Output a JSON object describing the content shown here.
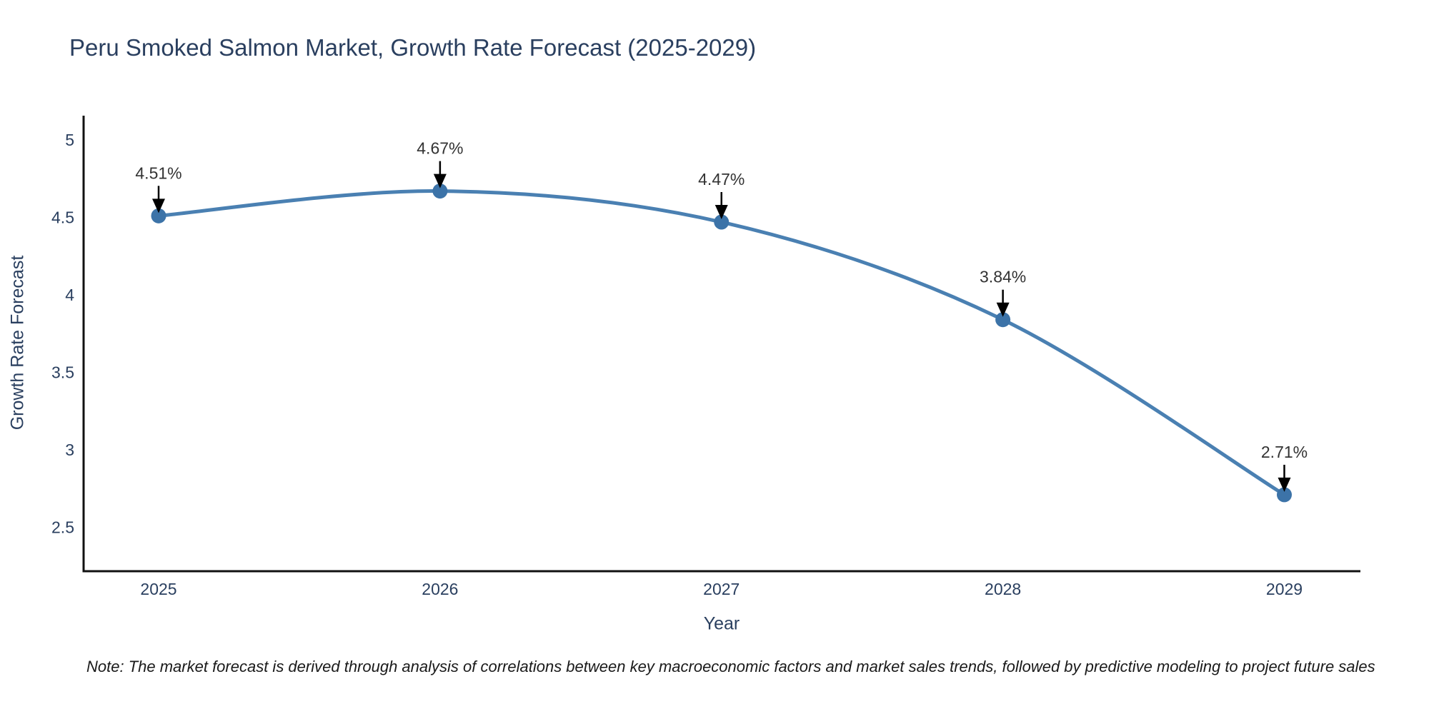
{
  "page": {
    "note": "Note: The market forecast is derived through analysis of correlations between key macroeconomic factors and market sales trends, followed by predictive modeling to project future sales"
  },
  "chart_data": {
    "type": "line",
    "title": "Peru Smoked Salmon Market, Growth Rate Forecast (2025-2029)",
    "xlabel": "Year",
    "ylabel": "Growth Rate Forecast",
    "x": [
      "2025",
      "2026",
      "2027",
      "2028",
      "2029"
    ],
    "series": [
      {
        "name": "Growth Rate Forecast",
        "values": [
          4.51,
          4.67,
          4.47,
          3.84,
          2.71
        ]
      }
    ],
    "point_labels": [
      "4.51%",
      "4.67%",
      "4.47%",
      "3.84%",
      "2.71%"
    ],
    "yticks": [
      "5",
      "4.5",
      "4",
      "3.5",
      "3",
      "2.5"
    ],
    "ytick_values": [
      5,
      4.5,
      4,
      3.5,
      3,
      2.5
    ],
    "ylim": [
      2.22,
      5.16
    ],
    "grid": false,
    "line_shape": "spline",
    "legend": "none",
    "colors": {
      "line": "#4a80b2",
      "marker": "#3c73a8",
      "axis": "#111111",
      "tick_label": "#2a3f5f",
      "title_text": "#2a3f5f",
      "annotation_text": "#333333",
      "annotation_arrow": "#000000",
      "background": "#ffffff"
    }
  }
}
